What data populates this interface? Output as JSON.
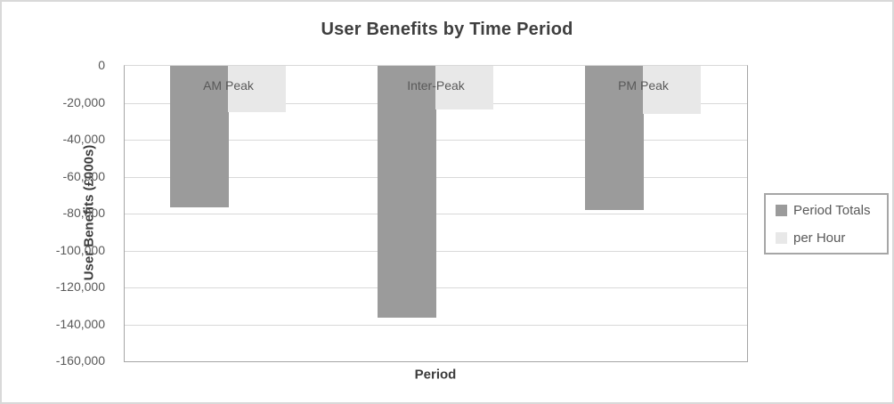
{
  "chart_data": {
    "type": "bar",
    "title": "User Benefits by Time Period",
    "xlabel": "Period",
    "ylabel": "User Benefits (£000s)",
    "categories": [
      "AM Peak",
      "Inter-Peak",
      "PM Peak"
    ],
    "series": [
      {
        "name": "Period Totals",
        "color": "#9b9b9b",
        "values": [
          -76400,
          -136500,
          -78000
        ]
      },
      {
        "name": "per Hour",
        "color": "#e8e8e8",
        "values": [
          -25300,
          -23400,
          -25900
        ]
      }
    ],
    "ylim": [
      0,
      -160000
    ],
    "ytick_interval": 20000,
    "ytick_labels": [
      "0",
      "-20,000",
      "-40,000",
      "-60,000",
      "-80,000",
      "-100,000",
      "-120,000",
      "-140,000",
      "-160,000"
    ],
    "grid": true,
    "legend_position": "right",
    "colors": {
      "title_text": "#3f3f3f",
      "axis_text": "#595959",
      "gridline": "#d9d9d9",
      "plot_border": "#a6a6a6",
      "frame_border": "#d9d9d9"
    }
  }
}
